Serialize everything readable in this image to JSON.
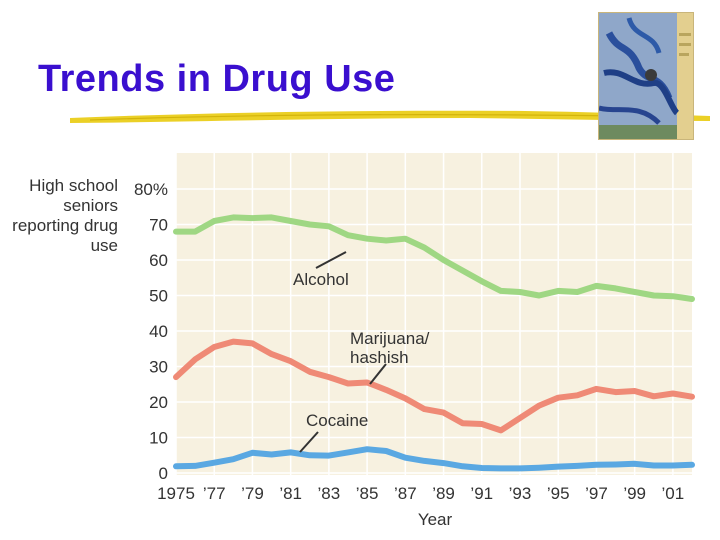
{
  "slide": {
    "title": "Trends in Drug Use"
  },
  "cover_image": {
    "icon": "book-cover-image"
  },
  "colors": {
    "title": "#3a0fcf",
    "underline": "#e8c800",
    "plot_background": "#f7f1e0",
    "grid": "#ffffff",
    "alcohol": "#9fd783",
    "marijuana": "#ef8a76",
    "cocaine": "#5aa8e2"
  },
  "chart_data": {
    "type": "line",
    "ylabel": "High school seniors reporting drug use",
    "xlabel": "Year",
    "xlim": [
      1975,
      2002
    ],
    "ylim": [
      0,
      80
    ],
    "y_ticks": [
      0,
      10,
      20,
      30,
      40,
      50,
      60,
      70,
      80
    ],
    "y_tick_labels": [
      "0",
      "10",
      "20",
      "30",
      "40",
      "50",
      "60",
      "70",
      "80%"
    ],
    "x_ticks": [
      1975,
      1977,
      1979,
      1981,
      1983,
      1985,
      1987,
      1989,
      1991,
      1993,
      1995,
      1997,
      1999,
      2001
    ],
    "x_tick_labels": [
      "1975",
      "’77",
      "’79",
      "’81",
      "’83",
      "’85",
      "’87",
      "’89",
      "’91",
      "’93",
      "’95",
      "’97",
      "’99",
      "’01"
    ],
    "grid": true,
    "x": [
      1975,
      1976,
      1977,
      1978,
      1979,
      1980,
      1981,
      1982,
      1983,
      1984,
      1985,
      1986,
      1987,
      1988,
      1989,
      1990,
      1991,
      1992,
      1993,
      1994,
      1995,
      1996,
      1997,
      1998,
      1999,
      2000,
      2001,
      2002
    ],
    "series": [
      {
        "name": "Alcohol",
        "values": [
          68,
          68,
          71,
          72,
          71.8,
          72,
          71,
          70,
          69.5,
          67,
          66,
          65.5,
          66,
          63.5,
          60,
          57,
          54,
          51.3,
          51,
          50,
          51.3,
          51,
          52.7,
          52,
          51,
          50,
          49.8,
          49
        ]
      },
      {
        "name": "Marijuana/ hashish",
        "values": [
          27,
          32,
          35.5,
          37,
          36.5,
          33.5,
          31.5,
          28.5,
          27,
          25.2,
          25.5,
          23.4,
          21,
          18,
          17,
          14,
          13.8,
          12,
          15.5,
          19,
          21.2,
          21.9,
          23.7,
          22.8,
          23.1,
          21.6,
          22.4,
          21.5
        ]
      },
      {
        "name": "Cocaine",
        "values": [
          1.9,
          2,
          2.9,
          3.9,
          5.7,
          5.2,
          5.8,
          5,
          4.9,
          5.8,
          6.7,
          6.2,
          4.3,
          3.4,
          2.8,
          1.9,
          1.4,
          1.3,
          1.3,
          1.5,
          1.8,
          2,
          2.3,
          2.4,
          2.6,
          2.1,
          2.1,
          2.3
        ]
      }
    ]
  }
}
